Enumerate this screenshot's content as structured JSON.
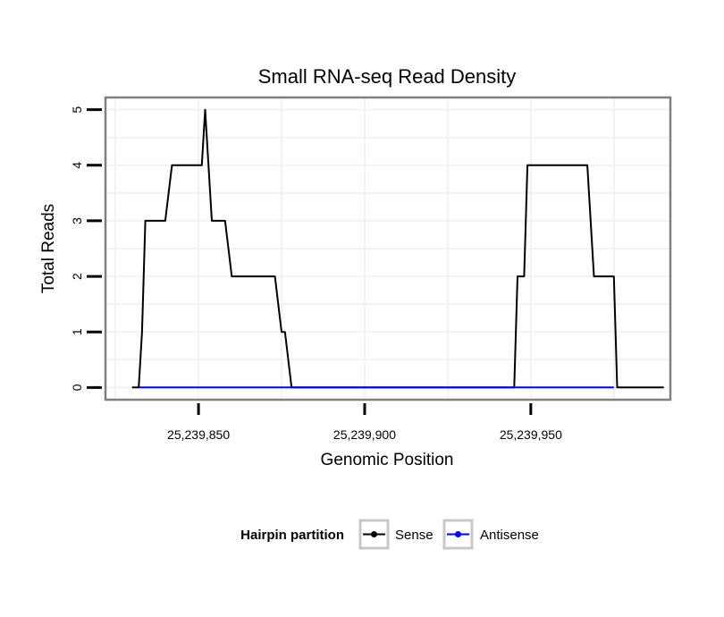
{
  "chart_data": {
    "type": "line",
    "title": "Small RNA-seq Read Density",
    "xlabel": "Genomic Position",
    "ylabel": "Total Reads",
    "xlim": [
      25239822,
      25239992
    ],
    "ylim": [
      -0.22,
      5.22
    ],
    "x_ticks": [
      25239850,
      25239900,
      25239950
    ],
    "x_tick_labels": [
      "25,239,850",
      "25,239,900",
      "25,239,950"
    ],
    "y_ticks": [
      0,
      1,
      2,
      3,
      4,
      5
    ],
    "y_tick_labels": [
      "0",
      "1",
      "2",
      "3",
      "4",
      "5"
    ],
    "grid": true,
    "legend": {
      "title": "Hairpin partition",
      "position": "bottom",
      "entries": [
        "Sense",
        "Antisense"
      ]
    },
    "series": [
      {
        "name": "Sense",
        "color": "#000000",
        "x": [
          25239830,
          25239832,
          25239833,
          25239834,
          25239836,
          25239837,
          25239839,
          25239840,
          25239842,
          25239843,
          25239845,
          25239846,
          25239848,
          25239849,
          25239851,
          25239852,
          25239854,
          25239855,
          25239857,
          25239858,
          25239860,
          25239861,
          25239863,
          25239864,
          25239866,
          25239867,
          25239869,
          25239870,
          25239872,
          25239873,
          25239875,
          25239876,
          25239878,
          25239940,
          25239942,
          25239943,
          25239945,
          25239946,
          25239948,
          25239949,
          25239951,
          25239952,
          25239954,
          25239955,
          25239957,
          25239958,
          25239960,
          25239961,
          25239963,
          25239964,
          25239966,
          25239967,
          25239969,
          25239970,
          25239972,
          25239973,
          25239975,
          25239976,
          25239978,
          25239990
        ],
        "y": [
          0,
          0,
          1,
          3,
          3,
          3,
          3,
          3,
          4,
          4,
          4,
          4,
          4,
          4,
          4,
          5,
          3,
          3,
          3,
          3,
          2,
          2,
          2,
          2,
          2,
          2,
          2,
          2,
          2,
          2,
          1,
          1,
          0,
          0,
          0,
          0,
          0,
          2,
          2,
          4,
          4,
          4,
          4,
          4,
          4,
          4,
          4,
          4,
          4,
          4,
          4,
          4,
          2,
          2,
          2,
          2,
          2,
          0,
          0,
          0
        ]
      },
      {
        "name": "Antisense",
        "color": "#0000ff",
        "x": [
          25239832,
          25239975
        ],
        "y": [
          0,
          0
        ]
      }
    ]
  }
}
